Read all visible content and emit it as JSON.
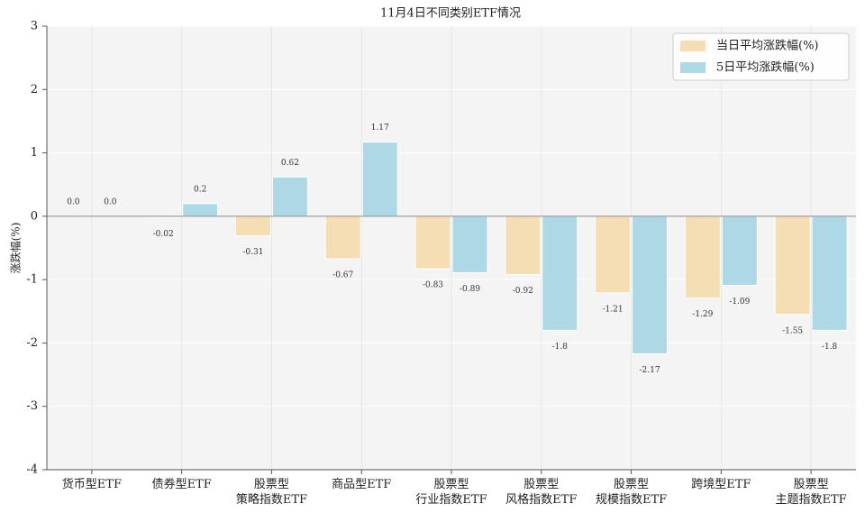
{
  "chart_data": {
    "type": "bar",
    "title": "11月4日不同类别ETF情况",
    "y_label": "涨跌幅(%)",
    "categories": [
      "货币型ETF",
      "债券型ETF",
      "股票型\n策略指数ETF",
      "商品型ETF",
      "股票型\n行业指数ETF",
      "股票型\n风格指数ETF",
      "股票型\n规模指数ETF",
      "跨境型ETF",
      "股票型\n主题指数ETF"
    ],
    "series": [
      {
        "name": "当日平均涨跌幅(%)",
        "color": "#f5deb3",
        "values": [
          0.0,
          -0.02,
          -0.31,
          -0.67,
          -0.83,
          -0.92,
          -1.21,
          -1.29,
          -1.55
        ],
        "value_labels": [
          "0.0",
          "-0.02",
          "-0.31",
          "-0.67",
          "-0.83",
          "-0.92",
          "-1.21",
          "-1.29",
          "-1.55"
        ]
      },
      {
        "name": "5日平均涨跌幅(%)",
        "color": "#add8e6",
        "values": [
          0.0,
          0.2,
          0.62,
          1.17,
          -0.89,
          -1.8,
          -2.17,
          -1.09,
          -1.8
        ],
        "value_labels": [
          "0.0",
          "0.2",
          "0.62",
          "1.17",
          "-0.89",
          "-1.8",
          "-2.17",
          "-1.09",
          "-1.8"
        ]
      }
    ],
    "ylim": [
      -4,
      3
    ],
    "yticks": [
      -4,
      -3,
      -2,
      -1,
      0,
      1,
      2,
      3
    ],
    "grid": true,
    "legend": "upper right"
  }
}
